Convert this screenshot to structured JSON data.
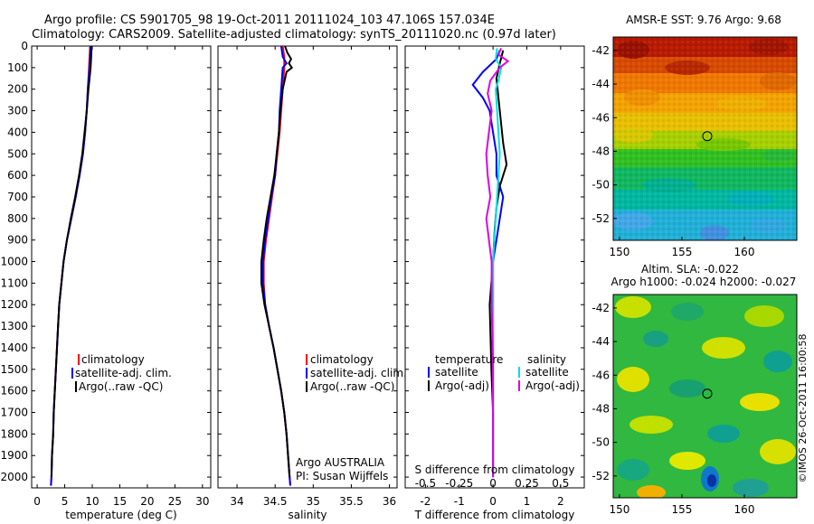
{
  "header": {
    "line1": "Argo profile: CS 5901705_98 19-Oct-2011 20111024_103 47.106S 157.034E",
    "line2": "Climatology: CARS2009. Satellite-adjusted climatology: synTS_20111020.nc (0.97d later)"
  },
  "depth_axis": {
    "ticks": [
      0,
      100,
      200,
      300,
      400,
      500,
      600,
      700,
      800,
      900,
      1000,
      1100,
      1200,
      1300,
      1400,
      1500,
      1600,
      1700,
      1800,
      1900,
      2000
    ],
    "ylim": [
      0,
      2050
    ]
  },
  "chart_data": [
    {
      "type": "line",
      "xlabel": "temperature (deg C)",
      "xlim": [
        -1,
        31.5
      ],
      "xticks": [
        0,
        5,
        10,
        15,
        20,
        25,
        30
      ],
      "ylim": [
        0,
        2050
      ],
      "legend": [
        "climatology",
        "satellite-adj. clim.",
        "Argo(..raw -QC)"
      ],
      "legend_placement": "lower-center",
      "series": [
        {
          "name": "climatology",
          "color": "#ff0000",
          "points": [
            [
              9.6,
              0
            ],
            [
              9.5,
              50
            ],
            [
              9.4,
              100
            ],
            [
              9.2,
              200
            ],
            [
              9.0,
              300
            ],
            [
              8.7,
              400
            ],
            [
              8.3,
              500
            ],
            [
              7.7,
              600
            ],
            [
              7.0,
              700
            ],
            [
              6.2,
              800
            ],
            [
              5.4,
              900
            ],
            [
              4.8,
              1000
            ],
            [
              4.4,
              1100
            ],
            [
              4.0,
              1200
            ],
            [
              3.8,
              1300
            ],
            [
              3.6,
              1400
            ],
            [
              3.4,
              1500
            ],
            [
              3.2,
              1600
            ],
            [
              3.0,
              1700
            ],
            [
              2.9,
              1800
            ],
            [
              2.7,
              1900
            ],
            [
              2.6,
              2000
            ],
            [
              2.5,
              2040
            ]
          ]
        },
        {
          "name": "satellite-adj. clim.",
          "color": "#0000ff",
          "points": [
            [
              9.7,
              0
            ],
            [
              9.6,
              50
            ],
            [
              9.5,
              100
            ],
            [
              9.2,
              200
            ],
            [
              9.0,
              300
            ],
            [
              8.7,
              400
            ],
            [
              8.3,
              500
            ],
            [
              7.7,
              600
            ],
            [
              7.0,
              700
            ],
            [
              6.2,
              800
            ],
            [
              5.4,
              900
            ],
            [
              4.8,
              1000
            ],
            [
              4.4,
              1100
            ],
            [
              4.0,
              1200
            ],
            [
              3.8,
              1300
            ],
            [
              3.6,
              1400
            ],
            [
              3.4,
              1500
            ],
            [
              3.2,
              1600
            ],
            [
              3.0,
              1700
            ],
            [
              2.9,
              1800
            ],
            [
              2.7,
              1900
            ],
            [
              2.6,
              2000
            ],
            [
              2.5,
              2040
            ]
          ]
        },
        {
          "name": "Argo(..raw -QC)",
          "color": "#000000",
          "points": [
            [
              9.9,
              0
            ],
            [
              9.8,
              50
            ],
            [
              9.7,
              100
            ],
            [
              9.3,
              200
            ],
            [
              9.0,
              300
            ],
            [
              8.6,
              400
            ],
            [
              8.2,
              500
            ],
            [
              7.6,
              600
            ],
            [
              6.9,
              700
            ],
            [
              6.1,
              800
            ],
            [
              5.4,
              900
            ],
            [
              4.8,
              1000
            ],
            [
              4.4,
              1100
            ],
            [
              4.0,
              1200
            ],
            [
              3.8,
              1300
            ],
            [
              3.6,
              1400
            ],
            [
              3.4,
              1500
            ],
            [
              3.2,
              1600
            ],
            [
              3.0,
              1700
            ],
            [
              2.9,
              1800
            ],
            [
              2.7,
              1900
            ],
            [
              2.6,
              2000
            ]
          ]
        }
      ]
    },
    {
      "type": "line",
      "xlabel": "salinity",
      "xlim": [
        33.75,
        36.1
      ],
      "xticks": [
        34,
        34.5,
        35,
        35.5,
        36
      ],
      "ylim": [
        0,
        2050
      ],
      "legend": [
        "climatology",
        "satellite-adj. clim.",
        "Argo(..raw -QC)"
      ],
      "legend_placement": "lower-right",
      "annotation": [
        "Argo AUSTRALIA",
        "PI: Susan Wijffels"
      ],
      "series": [
        {
          "name": "climatology",
          "color": "#ff0000",
          "points": [
            [
              34.6,
              0
            ],
            [
              34.62,
              50
            ],
            [
              34.62,
              100
            ],
            [
              34.6,
              200
            ],
            [
              34.58,
              300
            ],
            [
              34.56,
              400
            ],
            [
              34.53,
              500
            ],
            [
              34.5,
              600
            ],
            [
              34.46,
              700
            ],
            [
              34.42,
              800
            ],
            [
              34.38,
              900
            ],
            [
              34.35,
              1000
            ],
            [
              34.35,
              1100
            ],
            [
              34.37,
              1200
            ],
            [
              34.42,
              1300
            ],
            [
              34.48,
              1400
            ],
            [
              34.53,
              1500
            ],
            [
              34.58,
              1600
            ],
            [
              34.62,
              1700
            ],
            [
              34.65,
              1800
            ],
            [
              34.67,
              1900
            ],
            [
              34.69,
              2000
            ],
            [
              34.7,
              2040
            ]
          ]
        },
        {
          "name": "satellite-adj. clim.",
          "color": "#0000ff",
          "points": [
            [
              34.58,
              0
            ],
            [
              34.6,
              50
            ],
            [
              34.65,
              80
            ],
            [
              34.6,
              100
            ],
            [
              34.58,
              200
            ],
            [
              34.56,
              300
            ],
            [
              34.55,
              400
            ],
            [
              34.52,
              500
            ],
            [
              34.5,
              600
            ],
            [
              34.45,
              700
            ],
            [
              34.41,
              800
            ],
            [
              34.37,
              900
            ],
            [
              34.34,
              1000
            ],
            [
              34.34,
              1100
            ],
            [
              34.37,
              1200
            ],
            [
              34.42,
              1300
            ],
            [
              34.48,
              1400
            ],
            [
              34.53,
              1500
            ],
            [
              34.58,
              1600
            ],
            [
              34.62,
              1700
            ],
            [
              34.65,
              1800
            ],
            [
              34.67,
              1900
            ],
            [
              34.69,
              2000
            ],
            [
              34.7,
              2040
            ]
          ]
        },
        {
          "name": "Argo(..raw -QC)",
          "color": "#000000",
          "points": [
            [
              34.63,
              0
            ],
            [
              34.66,
              30
            ],
            [
              34.71,
              60
            ],
            [
              34.68,
              80
            ],
            [
              34.72,
              100
            ],
            [
              34.65,
              120
            ],
            [
              34.6,
              200
            ],
            [
              34.57,
              300
            ],
            [
              34.55,
              400
            ],
            [
              34.52,
              500
            ],
            [
              34.49,
              600
            ],
            [
              34.44,
              700
            ],
            [
              34.39,
              800
            ],
            [
              34.35,
              900
            ],
            [
              34.32,
              1000
            ],
            [
              34.32,
              1100
            ],
            [
              34.36,
              1200
            ],
            [
              34.42,
              1300
            ],
            [
              34.48,
              1400
            ],
            [
              34.53,
              1500
            ],
            [
              34.58,
              1600
            ],
            [
              34.62,
              1700
            ],
            [
              34.65,
              1800
            ],
            [
              34.67,
              1900
            ],
            [
              34.69,
              2000
            ]
          ]
        }
      ]
    },
    {
      "type": "line",
      "xlabel": "T difference from climatology",
      "xlabel2": "S difference from climatology",
      "xlim": [
        -2.6,
        2.7
      ],
      "xticks": [
        -2,
        -1,
        0,
        1,
        2
      ],
      "xticks_labels": [
        "-2",
        "-1",
        "0",
        "1",
        "2"
      ],
      "xticks_s": [
        -0.5,
        -0.25,
        0,
        0.25,
        0.5
      ],
      "xticks_s_labels": [
        "-0.5",
        "-0.25",
        "0",
        "0.25",
        "0.5"
      ],
      "ylim": [
        0,
        2050
      ],
      "legend_title_t": "temperature",
      "legend_title_s": "salinity",
      "legend": [
        "satellite",
        "Argo(-adj)",
        "satellite",
        "Argo(-adj)"
      ],
      "series": [
        {
          "name": "satellite",
          "group": "temperature",
          "color": "#0000ff",
          "points": [
            [
              0.2,
              20
            ],
            [
              0.1,
              60
            ],
            [
              -0.3,
              120
            ],
            [
              -0.6,
              180
            ],
            [
              -0.3,
              240
            ],
            [
              -0.1,
              300
            ],
            [
              0,
              400
            ],
            [
              0.1,
              500
            ],
            [
              0.1,
              600
            ],
            [
              0.3,
              700
            ],
            [
              0.2,
              800
            ],
            [
              0.1,
              900
            ],
            [
              0,
              1000
            ],
            [
              0,
              1200
            ],
            [
              0,
              1500
            ],
            [
              0,
              1800
            ],
            [
              0,
              2000
            ]
          ]
        },
        {
          "name": "Argo(-adj)",
          "group": "temperature",
          "color": "#000000",
          "points": [
            [
              0.3,
              20
            ],
            [
              0.2,
              80
            ],
            [
              0.1,
              150
            ],
            [
              0.2,
              300
            ],
            [
              0.3,
              450
            ],
            [
              0.4,
              550
            ],
            [
              0.2,
              650
            ],
            [
              0.1,
              750
            ],
            [
              0.05,
              850
            ],
            [
              0,
              1000
            ],
            [
              -0.1,
              1200
            ],
            [
              -0.05,
              1500
            ],
            [
              0,
              1700
            ],
            [
              0,
              1900
            ],
            [
              0,
              2000
            ]
          ]
        },
        {
          "name": "satellite",
          "group": "salinity",
          "color": "#00e0e0",
          "points": [
            [
              0.03,
              10
            ],
            [
              0.02,
              60
            ],
            [
              0.06,
              100
            ],
            [
              0.04,
              160
            ],
            [
              0.02,
              200
            ],
            [
              0.03,
              300
            ],
            [
              0.04,
              400
            ],
            [
              0.05,
              500
            ],
            [
              0.04,
              600
            ],
            [
              0.03,
              700
            ],
            [
              0.02,
              800
            ],
            [
              0,
              1000
            ],
            [
              0,
              1300
            ],
            [
              0,
              1600
            ],
            [
              0,
              1900
            ],
            [
              0,
              2000
            ]
          ]
        },
        {
          "name": "Argo(-adj)",
          "group": "salinity",
          "color": "#e000e0",
          "points": [
            [
              0.06,
              10
            ],
            [
              0.04,
              40
            ],
            [
              0.11,
              70
            ],
            [
              0.05,
              100
            ],
            [
              -0.02,
              160
            ],
            [
              -0.04,
              220
            ],
            [
              -0.01,
              300
            ],
            [
              -0.03,
              400
            ],
            [
              -0.05,
              500
            ],
            [
              -0.04,
              600
            ],
            [
              -0.02,
              700
            ],
            [
              -0.05,
              800
            ],
            [
              -0.03,
              900
            ],
            [
              -0.01,
              1000
            ],
            [
              -0.01,
              1200
            ],
            [
              0,
              1500
            ],
            [
              0,
              1800
            ],
            [
              0,
              2000
            ]
          ]
        }
      ]
    },
    {
      "type": "heatmap",
      "title": "AMSR-E SST: 9.76 Argo: 9.68",
      "xlim": [
        149.5,
        164.2
      ],
      "ylim": [
        -53.3,
        -41.2
      ],
      "xticks": [
        150,
        155,
        160
      ],
      "yticks": [
        -42,
        -44,
        -46,
        -48,
        -50,
        -52
      ],
      "marker": {
        "lon": 157.03,
        "lat": -47.1
      }
    },
    {
      "type": "heatmap",
      "title_line1": "Altim. SLA: -0.022",
      "title_line2": "Argo h1000: -0.024 h2000: -0.027",
      "xlim": [
        149.5,
        164.2
      ],
      "ylim": [
        -53.3,
        -41.2
      ],
      "xticks": [
        150,
        155,
        160
      ],
      "yticks": [
        -42,
        -44,
        -46,
        -48,
        -50,
        -52
      ],
      "marker": {
        "lon": 157.03,
        "lat": -47.1
      }
    }
  ],
  "side_label": "©IMOS 26-Oct-2011 16:00:58"
}
